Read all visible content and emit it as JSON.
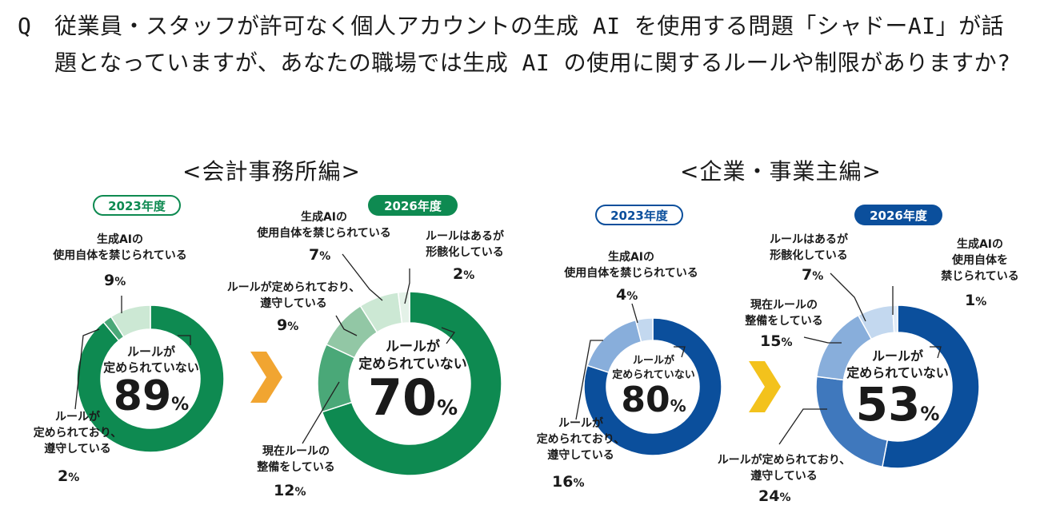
{
  "question": {
    "mark": "Q",
    "text": "従業員・スタッフが許可なく個人アカウントの生成 AI を使用する問題「シャドーAI」が話題となっていますが、あなたの職場では生成 AI の使用に関するルールや制限がありますか?"
  },
  "sections": {
    "accounting": {
      "title": "<会計事務所編>"
    },
    "corporate": {
      "title": "<企業・事業主編>"
    }
  },
  "colors": {
    "green_dark": "#0e8a51",
    "green_mid": "#4aa878",
    "green_light": "#92c7a5",
    "green_pale": "#cce8d4",
    "blue_dark": "#0b4f9c",
    "blue_mid": "#3f78bd",
    "blue_light": "#88aedb",
    "blue_pale": "#c3d8ef",
    "arrow_orange": "#f1a531",
    "arrow_yellow": "#f3c21c"
  },
  "chart_data": [
    {
      "type": "pie",
      "variant": "donut",
      "section": "会計事務所編",
      "year_label": "2023年度",
      "center_label": "ルールが定められていない",
      "center_value": "89",
      "labels": [
        "ルールが定められていない",
        "ルールが定められており、遵守している",
        "生成AIの使用自体を禁じられている"
      ],
      "values": [
        89,
        2,
        9
      ]
    },
    {
      "type": "pie",
      "variant": "donut",
      "section": "会計事務所編",
      "year_label": "2026年度",
      "center_label": "ルールが定められていない",
      "center_value": "70",
      "labels": [
        "ルールが定められていない",
        "現在ルールの整備をしている",
        "ルールが定められており、遵守している",
        "生成AIの使用自体を禁じられている",
        "ルールはあるが形骸化している"
      ],
      "values": [
        70,
        12,
        9,
        7,
        2
      ]
    },
    {
      "type": "pie",
      "variant": "donut",
      "section": "企業・事業主編",
      "year_label": "2023年度",
      "center_label": "ルールが定められていない",
      "center_value": "80",
      "labels": [
        "ルールが定められていない",
        "ルールが定められており、遵守している",
        "生成AIの使用自体を禁じられている"
      ],
      "values": [
        80,
        16,
        4
      ]
    },
    {
      "type": "pie",
      "variant": "donut",
      "section": "企業・事業主編",
      "year_label": "2026年度",
      "center_label": "ルールが定められていない",
      "center_value": "53",
      "labels": [
        "ルールが定められていない",
        "ルールが定められており、遵守している",
        "現在ルールの整備をしている",
        "ルールはあるが形骸化している",
        "生成AIの使用自体を禁じられている"
      ],
      "values": [
        53,
        24,
        15,
        7,
        1
      ]
    }
  ],
  "labels": {
    "c1": {
      "ban": [
        "生成AIの",
        "使用自体を禁じられている"
      ],
      "ban_pct": "9",
      "comply": [
        "ルールが",
        "定められており、",
        "遵守している"
      ],
      "comply_pct": "2"
    },
    "c2": {
      "ban": [
        "生成AIの",
        "使用自体を禁じられている"
      ],
      "ban_pct": "7",
      "formal": [
        "ルールはあるが",
        "形骸化している"
      ],
      "formal_pct": "2",
      "comply": [
        "ルールが定められており、",
        "遵守している"
      ],
      "comply_pct": "9",
      "prep": [
        "現在ルールの",
        "整備をしている"
      ],
      "prep_pct": "12"
    },
    "c3": {
      "ban": [
        "生成AIの",
        "使用自体を禁じられている"
      ],
      "ban_pct": "4",
      "comply": [
        "ルールが",
        "定められており、",
        "遵守している"
      ],
      "comply_pct": "16"
    },
    "c4": {
      "formal": [
        "ルールはあるが",
        "形骸化している"
      ],
      "formal_pct": "7",
      "ban": [
        "生成AIの",
        "使用自体を",
        "禁じられている"
      ],
      "ban_pct": "1",
      "prep": [
        "現在ルールの",
        "整備をしている"
      ],
      "prep_pct": "15",
      "comply": [
        "ルールが定められており、",
        "遵守している"
      ],
      "comply_pct": "24"
    },
    "percent_sign": "%"
  }
}
